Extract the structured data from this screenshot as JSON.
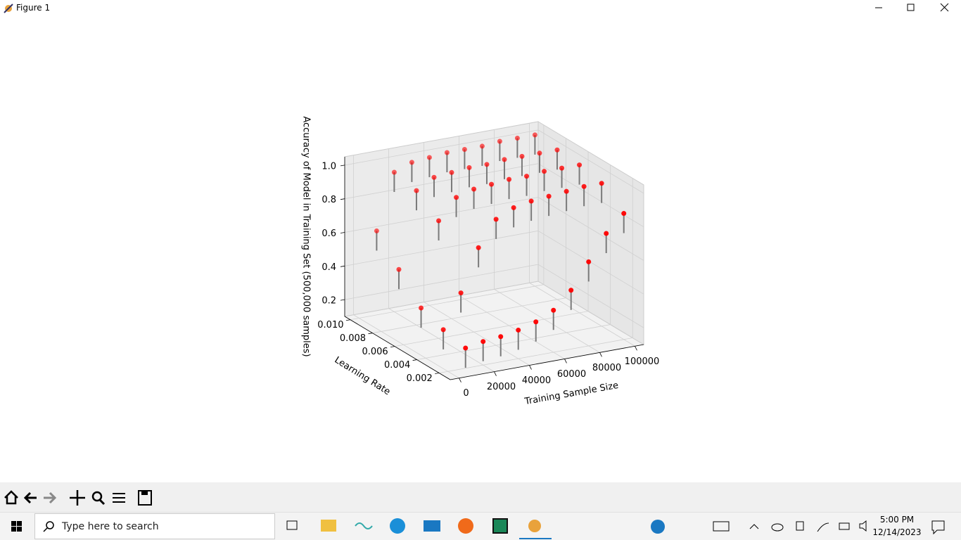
{
  "window": {
    "title": "Figure 1"
  },
  "chart_data": {
    "type": "scatter3d",
    "xlabel": "Training Sample Size",
    "ylabel": "Learning Rate",
    "zlabel": "Accuracy of Model in Training Set (500,000 samples)",
    "xlim": [
      -5000,
      105000
    ],
    "ylim": [
      0.001,
      0.0105
    ],
    "zlim": [
      0.1,
      1.05
    ],
    "xticks": [
      0,
      20000,
      40000,
      60000,
      80000,
      100000
    ],
    "yticks": [
      0.002,
      0.004,
      0.006,
      0.008,
      {
        "value": 0.01,
        "label": "0.010"
      }
    ],
    "zticks": [
      0.2,
      0.4,
      0.6,
      0.8,
      {
        "value": 1,
        "label": "1.0"
      }
    ],
    "color": "#ff0000",
    "grid": true,
    "x": [
      10000,
      20000,
      30000,
      40000,
      50000,
      60000,
      70000,
      80000,
      90000,
      100000,
      10000,
      20000,
      30000,
      40000,
      50000,
      60000,
      70000,
      80000,
      90000,
      100000,
      10000,
      20000,
      30000,
      40000,
      50000,
      60000,
      70000,
      80000,
      90000,
      100000,
      10000,
      20000,
      30000,
      40000,
      50000,
      60000,
      70000,
      80000,
      90000,
      100000,
      10000,
      20000,
      30000,
      40000,
      50000,
      60000,
      70000,
      80000,
      90000,
      100000
    ],
    "y": [
      0.002,
      0.002,
      0.002,
      0.002,
      0.002,
      0.002,
      0.002,
      0.002,
      0.002,
      0.002,
      0.004,
      0.004,
      0.004,
      0.004,
      0.004,
      0.004,
      0.004,
      0.004,
      0.004,
      0.004,
      0.006,
      0.006,
      0.006,
      0.006,
      0.006,
      0.006,
      0.006,
      0.006,
      0.006,
      0.006,
      0.008,
      0.008,
      0.008,
      0.008,
      0.008,
      0.008,
      0.008,
      0.008,
      0.008,
      0.008,
      0.01,
      0.01,
      0.01,
      0.01,
      0.01,
      0.01,
      0.01,
      0.01,
      0.01,
      0.01
    ],
    "z": [
      0.22,
      0.24,
      0.25,
      0.27,
      0.3,
      0.35,
      0.45,
      0.6,
      0.75,
      0.85,
      0.25,
      0.45,
      0.7,
      0.85,
      0.9,
      0.92,
      0.93,
      0.94,
      0.95,
      0.95,
      0.3,
      0.8,
      0.92,
      0.95,
      0.96,
      0.97,
      0.97,
      0.98,
      0.98,
      0.98,
      0.45,
      0.9,
      0.96,
      0.97,
      0.98,
      0.98,
      0.99,
      0.99,
      0.99,
      0.99,
      0.6,
      0.93,
      0.97,
      0.98,
      0.99,
      0.99,
      0.99,
      1.0,
      1.0,
      1.0
    ]
  },
  "taskbar": {
    "search_placeholder": "Type here to search",
    "time": "5:00 PM",
    "date": "12/14/2023"
  }
}
